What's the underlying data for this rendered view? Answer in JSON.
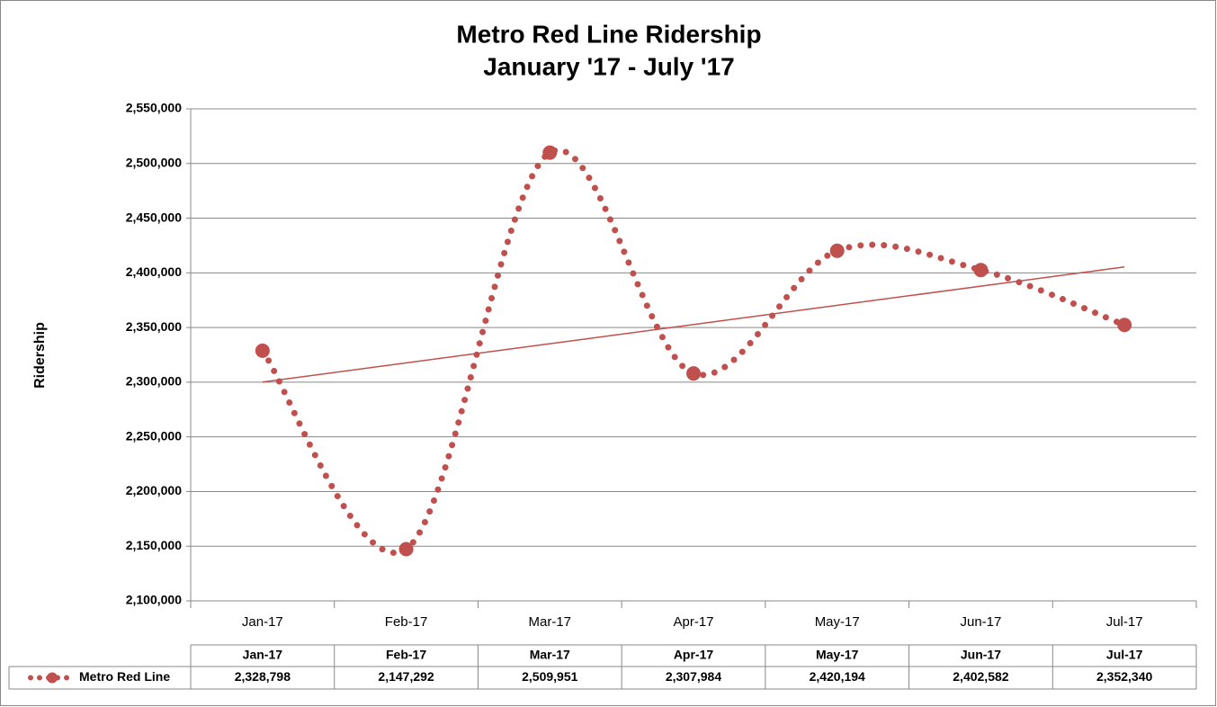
{
  "chart_data": {
    "type": "line",
    "title": "Metro Red Line Ridership",
    "subtitle": "January '17 - July '17",
    "y_label": "Ridership",
    "categories": [
      "Jan-17",
      "Feb-17",
      "Mar-17",
      "Apr-17",
      "May-17",
      "Jun-17",
      "Jul-17"
    ],
    "series": [
      {
        "name": "Metro Red Line",
        "color": "#c0504d",
        "values": [
          2328798,
          2147292,
          2509951,
          2307984,
          2420194,
          2402582,
          2352340
        ],
        "value_labels": [
          "2,328,798",
          "2,147,292",
          "2,509,951",
          "2,307,984",
          "2,420,194",
          "2,402,582",
          "2,352,340"
        ]
      }
    ],
    "trendline": "linear",
    "ylim": [
      2100000,
      2550000
    ],
    "yticks": [
      {
        "value": 2100000,
        "label": "2,100,000"
      },
      {
        "value": 2150000,
        "label": "2,150,000"
      },
      {
        "value": 2200000,
        "label": "2,200,000"
      },
      {
        "value": 2250000,
        "label": "2,250,000"
      },
      {
        "value": 2300000,
        "label": "2,300,000"
      },
      {
        "value": 2350000,
        "label": "2,350,000"
      },
      {
        "value": 2400000,
        "label": "2,400,000"
      },
      {
        "value": 2450000,
        "label": "2,450,000"
      },
      {
        "value": 2500000,
        "label": "2,500,000"
      },
      {
        "value": 2550000,
        "label": "2,550,000"
      }
    ],
    "grid": true,
    "data_table": true
  }
}
